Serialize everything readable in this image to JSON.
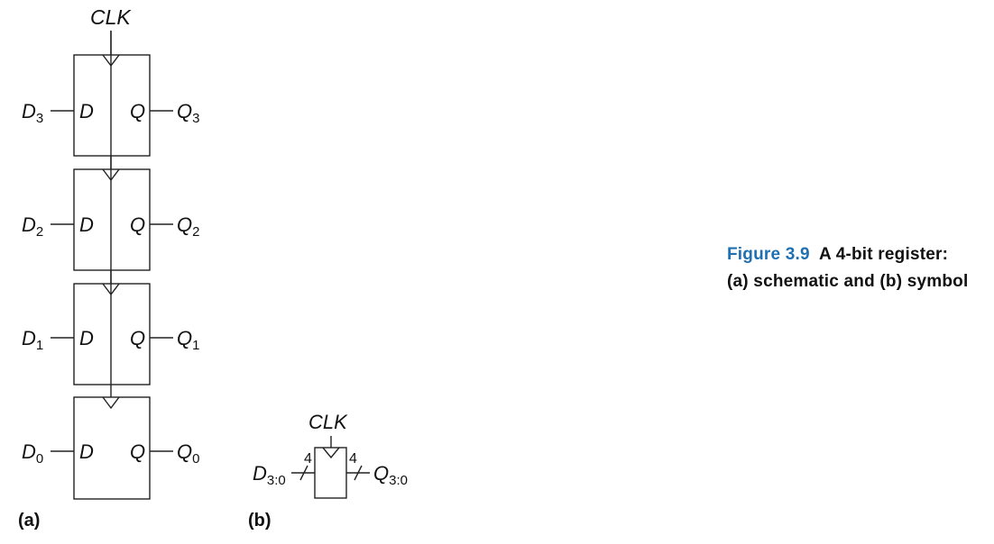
{
  "figure": {
    "caption_label": "Figure 3.9",
    "caption_text_line1": "A 4-bit register:",
    "caption_text_line2": "(a) schematic and (b) symbol"
  },
  "schematic": {
    "panel_label": "(a)",
    "clock_label": "CLK",
    "d_port_label": "D",
    "q_port_label": "Q",
    "flipflops": [
      {
        "input": "D",
        "input_sub": "3",
        "output": "Q",
        "output_sub": "3"
      },
      {
        "input": "D",
        "input_sub": "2",
        "output": "Q",
        "output_sub": "2"
      },
      {
        "input": "D",
        "input_sub": "1",
        "output": "Q",
        "output_sub": "1"
      },
      {
        "input": "D",
        "input_sub": "0",
        "output": "Q",
        "output_sub": "0"
      }
    ]
  },
  "symbol": {
    "panel_label": "(b)",
    "clock_label": "CLK",
    "input": "D",
    "input_sub": "3:0",
    "output": "Q",
    "output_sub": "3:0",
    "bus_width_in": "4",
    "bus_width_out": "4"
  },
  "colors": {
    "caption_accent": "#1f6fb2",
    "line": "#222222"
  }
}
